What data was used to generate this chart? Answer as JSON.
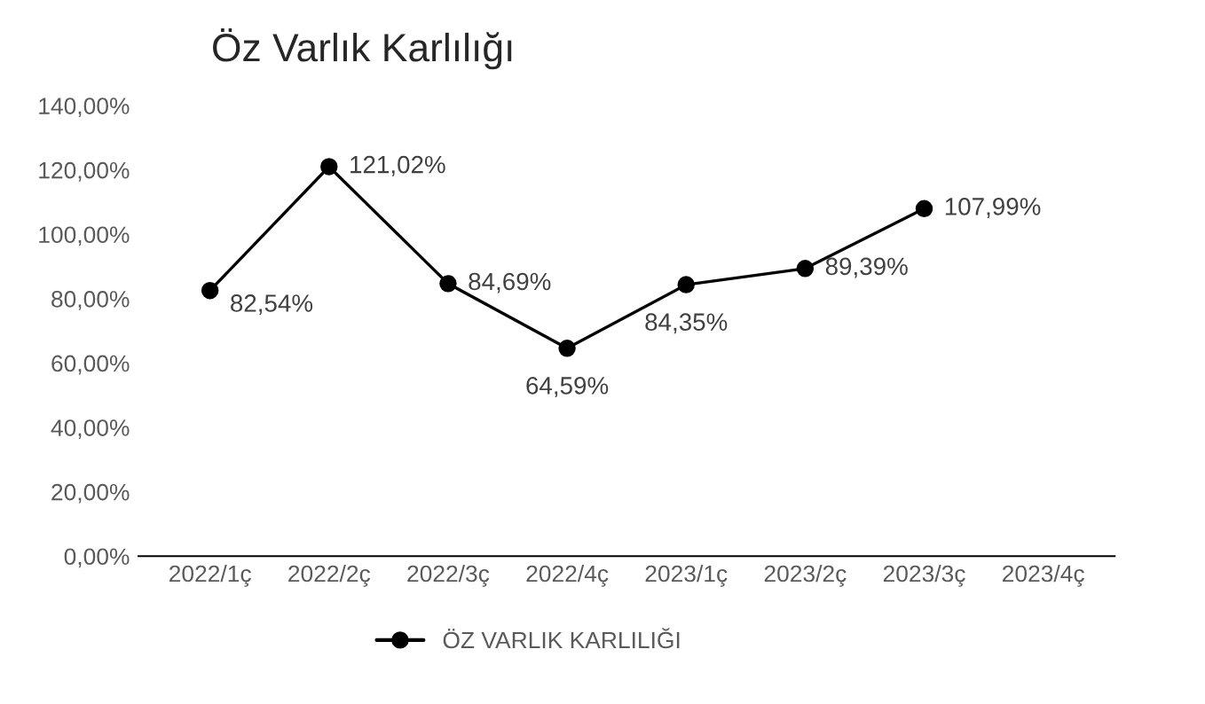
{
  "chart_data": {
    "type": "line",
    "title": "Öz Varlık Karlılığı",
    "categories": [
      "2022/1ç",
      "2022/2ç",
      "2022/3ç",
      "2022/4ç",
      "2023/1ç",
      "2023/2ç",
      "2023/3ç",
      "2023/4ç"
    ],
    "series": [
      {
        "name": "ÖZ VARLIK KARLILIĞI",
        "color": "#000000",
        "values": [
          82.54,
          121.02,
          84.69,
          64.59,
          84.35,
          89.39,
          107.99,
          null
        ],
        "value_labels": [
          "82,54%",
          "121,02%",
          "84,69%",
          "64,59%",
          "84,35%",
          "89,39%",
          "107,99%",
          null
        ]
      }
    ],
    "ylim": [
      0,
      140
    ],
    "yticks": [
      {
        "value": 0,
        "label": "0,00%"
      },
      {
        "value": 20,
        "label": "20,00%"
      },
      {
        "value": 40,
        "label": "40,00%"
      },
      {
        "value": 60,
        "label": "60,00%"
      },
      {
        "value": 80,
        "label": "80,00%"
      },
      {
        "value": 100,
        "label": "100,00%"
      },
      {
        "value": 120,
        "label": "120,00%"
      },
      {
        "value": 140,
        "label": "140,00%"
      }
    ],
    "grid": false,
    "legend": "bottom",
    "marker": "circle",
    "line_style": "solid"
  }
}
